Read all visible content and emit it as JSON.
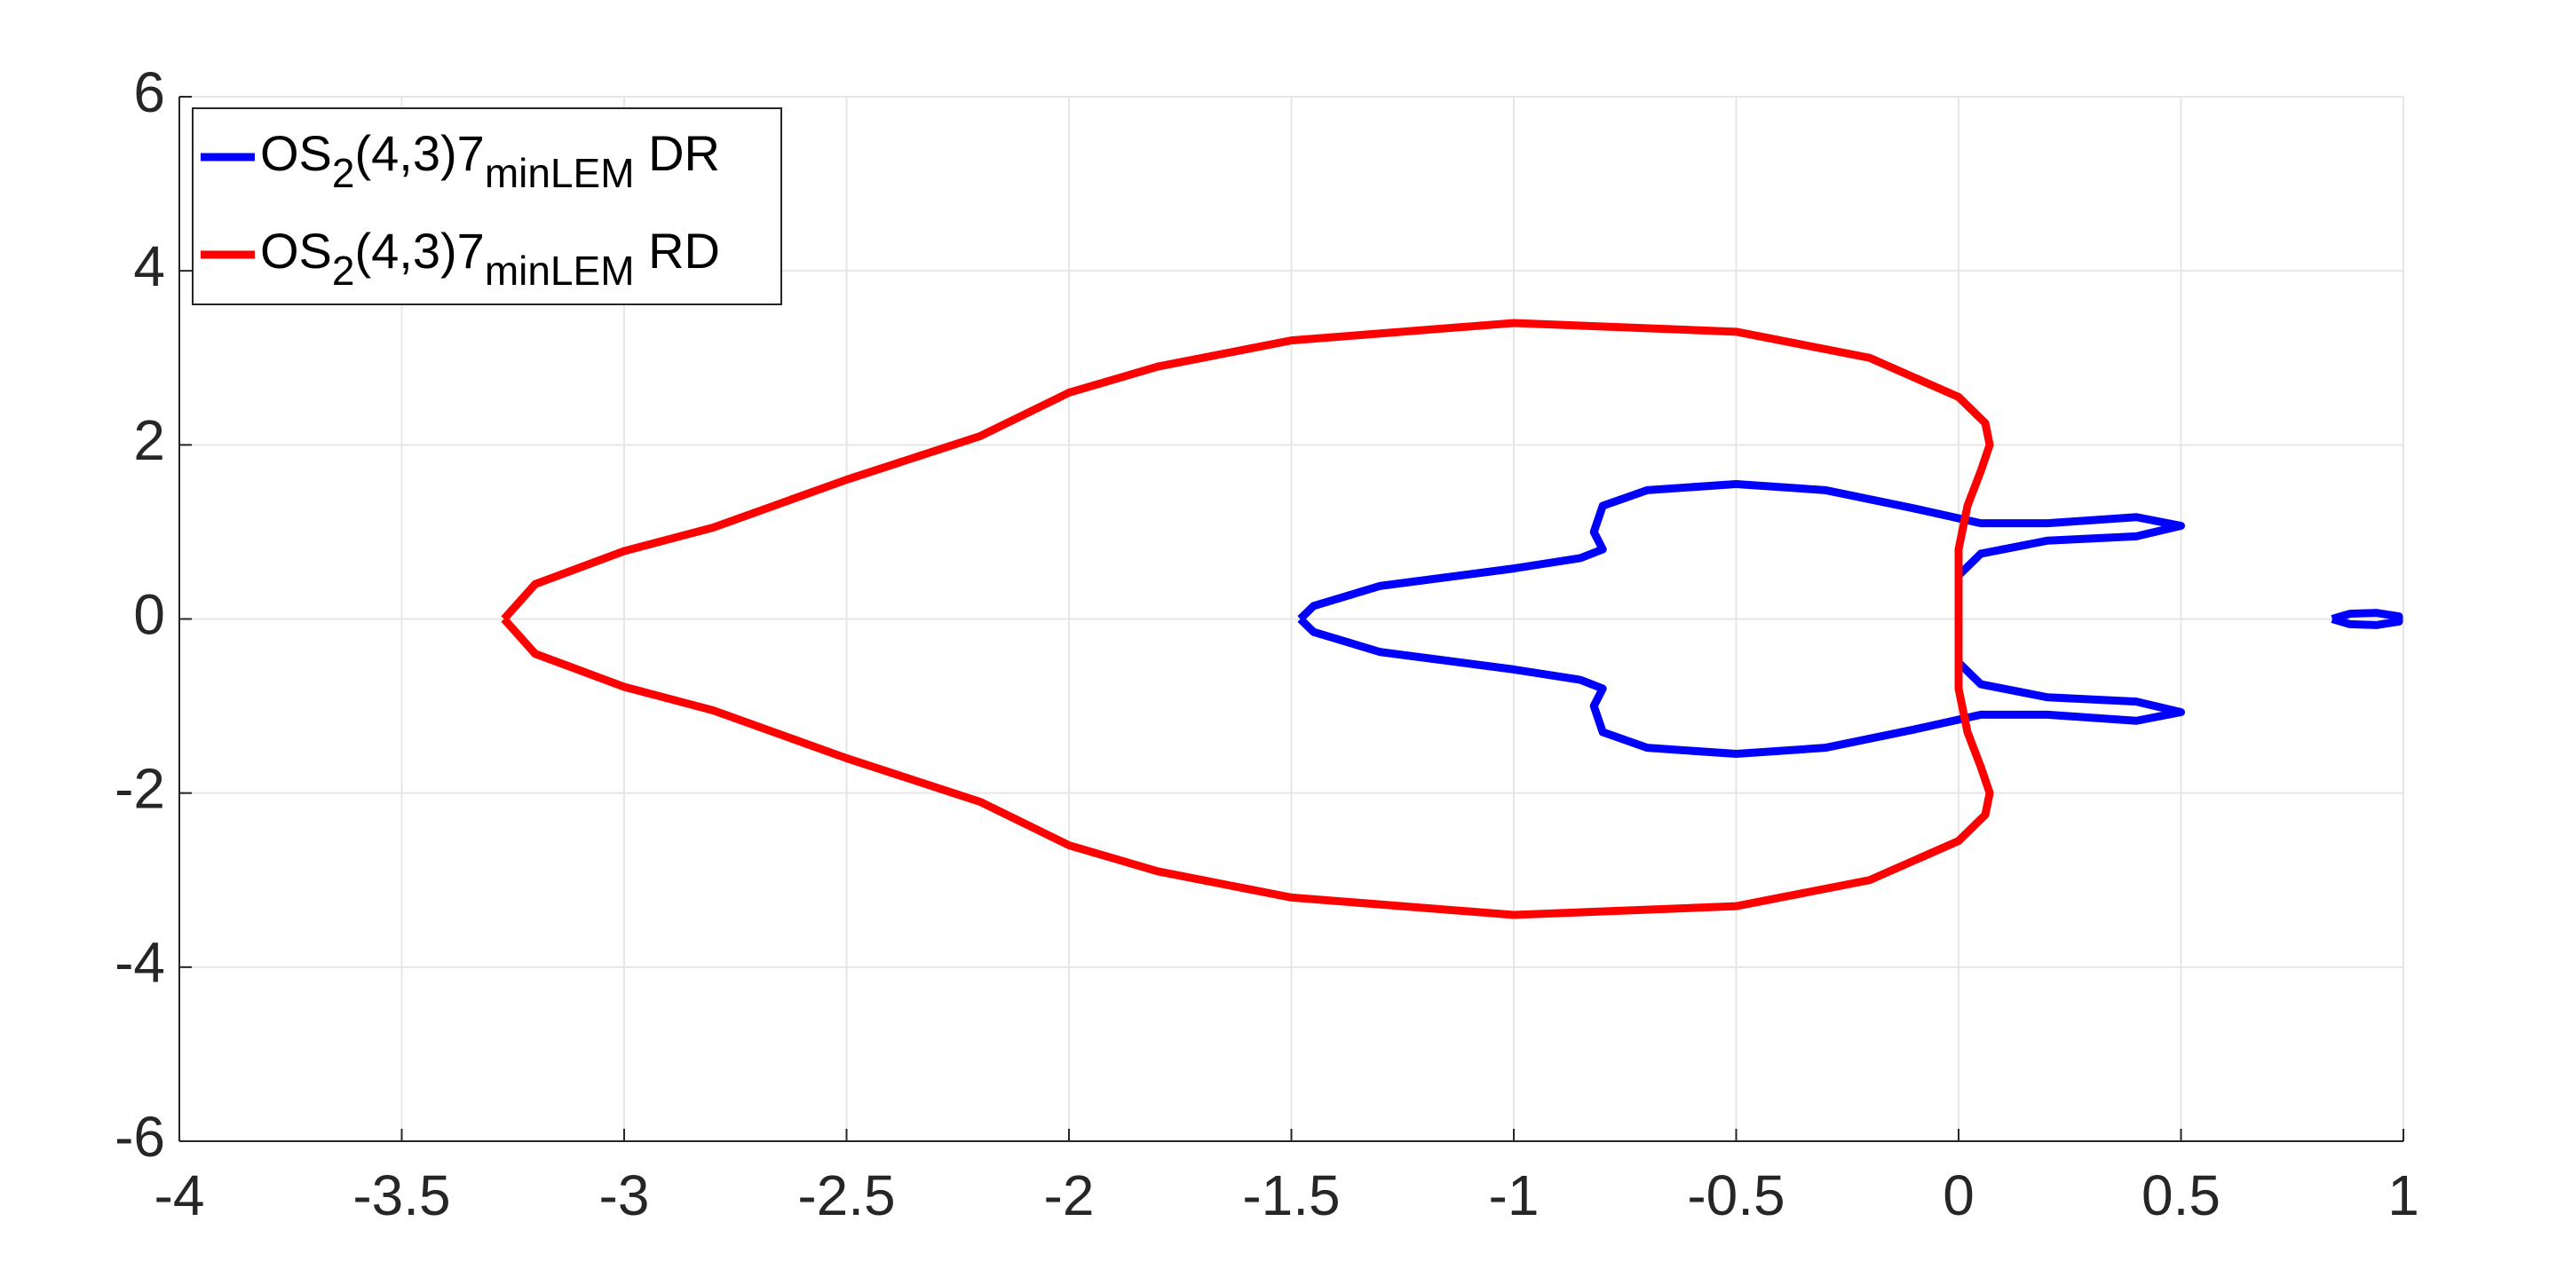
{
  "chart_data": {
    "type": "line",
    "xlim": [
      -4,
      1
    ],
    "xticks": [
      -4,
      -3.5,
      -3,
      -2.5,
      -2,
      -1.5,
      -1,
      -0.5,
      0,
      0.5,
      1
    ],
    "ylim": [
      -6,
      6
    ],
    "yticks": [
      -6,
      -4,
      -2,
      0,
      2,
      4,
      6
    ],
    "grid": true,
    "legend": "upper left",
    "series": [
      {
        "name": "OS_2(4,3)7_{minLEM} DR",
        "color": "#0000ff",
        "x": [
          -1.48,
          -1.45,
          -1.3,
          -1.0,
          -0.85,
          -0.8,
          -0.82,
          -0.8,
          -0.7,
          -0.5,
          -0.3,
          -0.1,
          0.05,
          0.2,
          0.4,
          0.5,
          0.4,
          0.2,
          0.05,
          0,
          0,
          0,
          0,
          0.05,
          0.2,
          0.4,
          0.5,
          0.4,
          0.2,
          0.05,
          -0.1,
          -0.3,
          -0.5,
          -0.7,
          -0.8,
          -0.82,
          -0.8,
          -0.85,
          -1.0,
          -1.3,
          -1.45,
          -1.48,
          null,
          0.84,
          0.88,
          0.94,
          0.99,
          0.99,
          0.94,
          0.88,
          0.84
        ],
        "y": [
          0,
          0.15,
          0.38,
          0.58,
          0.7,
          0.8,
          1.0,
          1.3,
          1.48,
          1.55,
          1.48,
          1.27,
          1.1,
          1.1,
          1.17,
          1.07,
          0.95,
          0.9,
          0.75,
          0.5,
          0.1,
          -0.1,
          -0.5,
          -0.75,
          -0.9,
          -0.95,
          -1.07,
          -1.17,
          -1.1,
          -1.1,
          -1.27,
          -1.48,
          -1.55,
          -1.48,
          -1.3,
          -1.0,
          -0.8,
          -0.7,
          -0.58,
          -0.38,
          -0.15,
          0,
          null,
          0,
          0.06,
          0.07,
          0.03,
          -0.03,
          -0.07,
          -0.06,
          0
        ]
      },
      {
        "name": "OS_2(4,3)7_{minLEM} RD",
        "color": "#ff0000",
        "x": [
          -3.27,
          -3.2,
          -3.0,
          -2.8,
          -2.5,
          -2.2,
          -2.0,
          -1.8,
          -1.5,
          -1.0,
          -0.5,
          -0.2,
          0,
          0.06,
          0.07,
          0.05,
          0.02,
          0,
          0,
          0,
          0,
          0.02,
          0.05,
          0.07,
          0.06,
          0,
          -0.2,
          -0.5,
          -1.0,
          -1.5,
          -1.8,
          -2.0,
          -2.2,
          -2.5,
          -2.8,
          -3.0,
          -3.2,
          -3.27
        ],
        "y": [
          0,
          0.4,
          0.78,
          1.05,
          1.6,
          2.1,
          2.6,
          2.9,
          3.2,
          3.4,
          3.3,
          3.0,
          2.55,
          2.25,
          2.0,
          1.7,
          1.3,
          0.8,
          0.3,
          -0.3,
          -0.8,
          -1.3,
          -1.7,
          -2.0,
          -2.25,
          -2.55,
          -3.0,
          -3.3,
          -3.4,
          -3.2,
          -2.9,
          -2.6,
          -2.1,
          -1.6,
          -1.05,
          -0.78,
          -0.4,
          0
        ]
      }
    ]
  }
}
